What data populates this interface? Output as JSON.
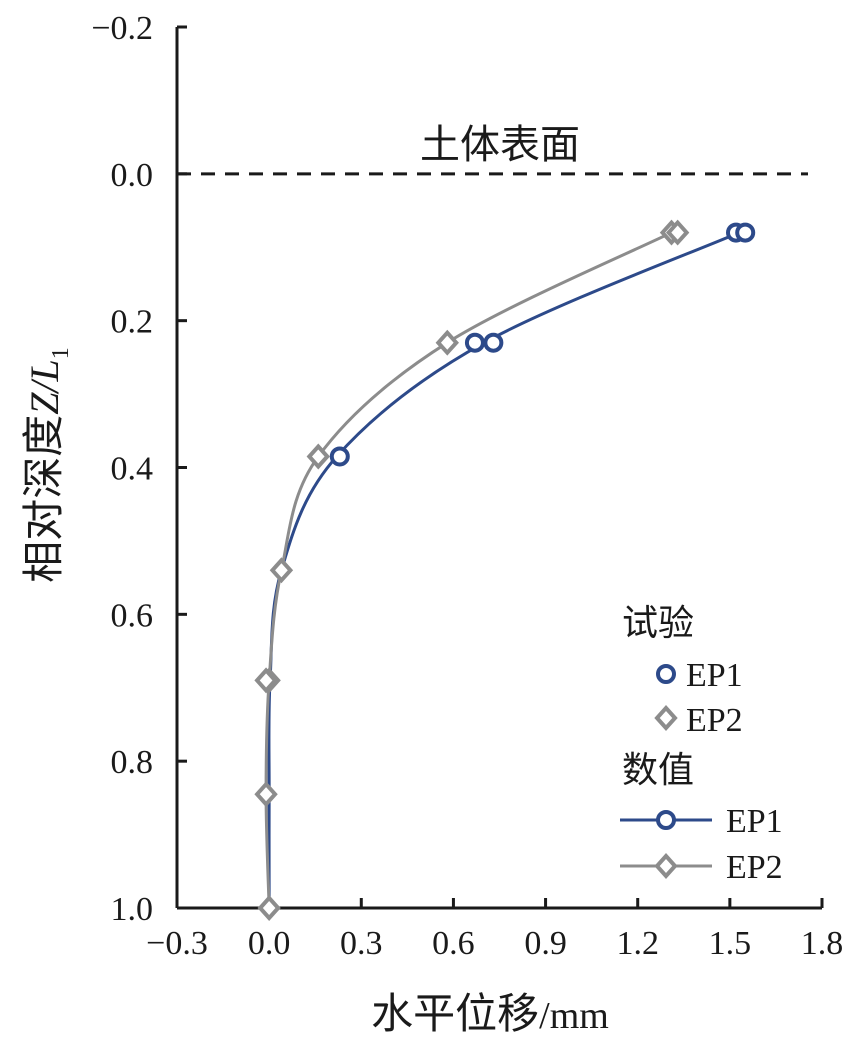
{
  "chart_data": {
    "type": "line",
    "xlabel_main": "水平位移",
    "xlabel_unit": "/mm",
    "ylabel_main": "相对深度",
    "ylabel_var": "Z/L",
    "ylabel_sub": "1",
    "xlim": [
      -0.3,
      1.8
    ],
    "ylim": [
      -0.2,
      1.0
    ],
    "y_inverted": true,
    "x_ticks": [
      -0.3,
      0.0,
      0.3,
      0.6,
      0.9,
      1.2,
      1.5,
      1.8
    ],
    "x_tick_labels": [
      "−0.3",
      "0.0",
      "0.3",
      "0.6",
      "0.9",
      "1.2",
      "1.5",
      "1.8"
    ],
    "y_ticks": [
      -0.2,
      0.0,
      0.2,
      0.4,
      0.6,
      0.8,
      1.0
    ],
    "y_tick_labels": [
      "−0.2",
      "0.0",
      "0.2",
      "0.4",
      "0.6",
      "0.8",
      "1.0"
    ],
    "reference_line": {
      "y": 0.0,
      "label": "土体表面",
      "style": "dashed"
    },
    "legend": {
      "position": "bottom-right",
      "experiment_title": "试验",
      "numerical_title": "数值"
    },
    "experiment_series": [
      {
        "name": "EP1",
        "marker": "circle",
        "color": "#2d4a8a",
        "points": [
          [
            1.52,
            0.08
          ],
          [
            1.55,
            0.08
          ],
          [
            0.67,
            0.23
          ],
          [
            0.73,
            0.23
          ],
          [
            0.23,
            0.385
          ]
        ]
      },
      {
        "name": "EP2",
        "marker": "diamond",
        "color": "#8c8c8c",
        "points": [
          [
            1.31,
            0.08
          ],
          [
            1.33,
            0.08
          ],
          [
            0.58,
            0.23
          ],
          [
            0.16,
            0.385
          ],
          [
            0.04,
            0.54
          ],
          [
            0.0,
            0.69
          ],
          [
            -0.01,
            0.69
          ],
          [
            -0.01,
            0.845
          ],
          [
            0.0,
            1.0
          ]
        ]
      }
    ],
    "numerical_series": [
      {
        "name": "EP1",
        "color": "#2d4a8a",
        "points": [
          [
            0.0,
            1.0
          ],
          [
            0.0,
            0.845
          ],
          [
            0.003,
            0.69
          ],
          [
            0.04,
            0.54
          ],
          [
            0.22,
            0.385
          ],
          [
            0.7,
            0.23
          ],
          [
            1.53,
            0.08
          ]
        ]
      },
      {
        "name": "EP2",
        "color": "#8c8c8c",
        "points": [
          [
            0.0,
            1.0
          ],
          [
            -0.01,
            0.845
          ],
          [
            0.0,
            0.69
          ],
          [
            0.04,
            0.54
          ],
          [
            0.16,
            0.385
          ],
          [
            0.58,
            0.23
          ],
          [
            1.31,
            0.08
          ]
        ]
      }
    ]
  }
}
